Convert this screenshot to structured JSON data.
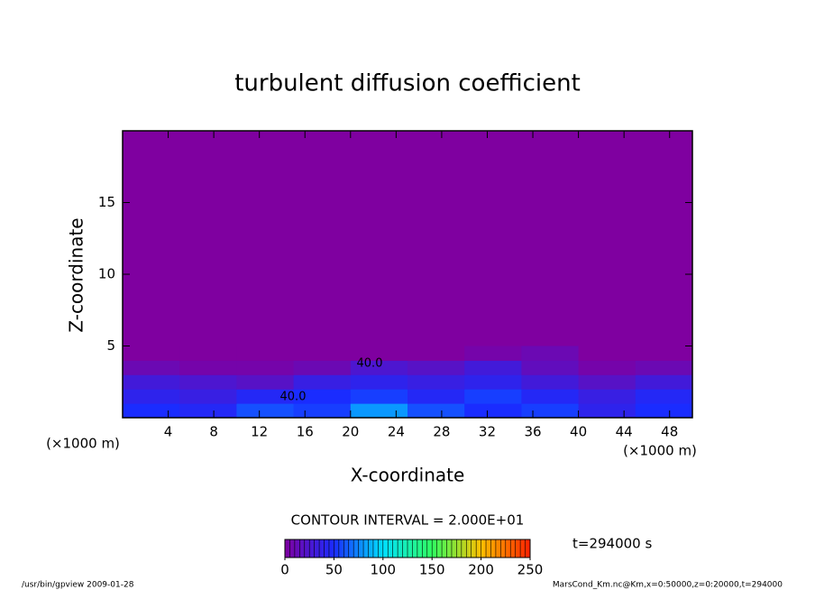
{
  "chart_data": {
    "type": "heatmap",
    "title": "turbulent diffusion coefficient",
    "xlabel": "X-coordinate",
    "ylabel": "Z-coordinate",
    "x_unit": "(×1000 m)",
    "xlim": [
      0,
      50
    ],
    "ylim": [
      0,
      20
    ],
    "xticks": [
      4,
      8,
      12,
      16,
      20,
      24,
      28,
      32,
      36,
      40,
      44,
      48
    ],
    "yticks": [
      5,
      10,
      15
    ],
    "x": [
      2.5,
      7.5,
      12.5,
      17.5,
      22.5,
      27.5,
      32.5,
      37.5,
      42.5,
      47.5
    ],
    "y": [
      0.5,
      1.5,
      2.5,
      3.5,
      4.5
    ],
    "z": [
      [
        50,
        45,
        60,
        55,
        80,
        60,
        50,
        55,
        40,
        50
      ],
      [
        40,
        35,
        45,
        50,
        55,
        45,
        55,
        45,
        35,
        45
      ],
      [
        30,
        25,
        20,
        35,
        40,
        35,
        40,
        30,
        20,
        30
      ],
      [
        10,
        5,
        5,
        10,
        25,
        20,
        30,
        15,
        5,
        10
      ],
      [
        0,
        0,
        0,
        0,
        0,
        0,
        5,
        10,
        0,
        0
      ]
    ],
    "colormap": [
      "#7f00a0",
      "#1a2cff",
      "#00e0ff",
      "#30ff60",
      "#ffc000",
      "#ff2000"
    ],
    "clim": [
      0,
      250
    ],
    "cticks": [
      0,
      50,
      100,
      150,
      200,
      250
    ],
    "contour_interval": "CONTOUR INTERVAL = 2.000E+01",
    "time": "t=294000 s",
    "annotations": [
      "40.0",
      "40.0"
    ],
    "footer_left": "/usr/bin/gpview  2009-01-28",
    "footer_right": "MarsCond_Km.nc@Km,x=0:50000,z=0:20000,t=294000"
  }
}
